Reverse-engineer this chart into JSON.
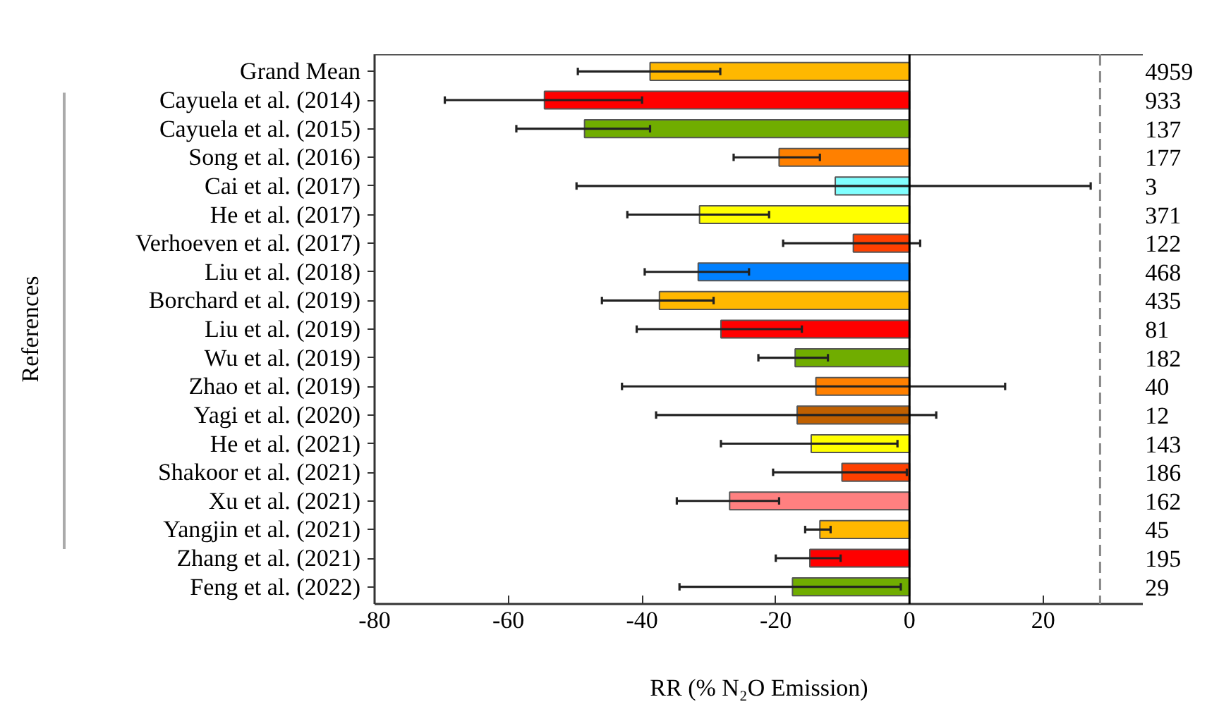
{
  "chart_data": {
    "type": "bar",
    "orientation": "horizontal",
    "xlabel": "RR (% N₂O Emission)",
    "ylabel": "References",
    "categories": [
      "Grand Mean",
      "Cayuela et al. (2014)",
      "Cayuela et al. (2015)",
      "Song et al. (2016)",
      "Cai et al. (2017)",
      "He et al. (2017)",
      "Verhoeven et al. (2017)",
      "Liu et al. (2018)",
      "Borchard et al. (2019)",
      "Liu et al. (2019)",
      "Wu et al. (2019)",
      "Zhao et al. (2019)",
      "Yagi et al. (2020)",
      "He et al. (2021)",
      "Shakoor et al. (2021)",
      "Xu et al. (2021)",
      "Yangjin et al. (2021)",
      "Zhang et al. (2021)",
      "Feng et al. (2022)"
    ],
    "values": [
      -38.8,
      -54.6,
      -48.6,
      -19.5,
      -11.1,
      -31.4,
      -8.4,
      -31.6,
      -37.4,
      -28.2,
      -17.1,
      -14.0,
      -16.8,
      -14.7,
      -10.1,
      -26.9,
      -13.4,
      -14.9,
      -17.5
    ],
    "errors": [
      [
        -49.6,
        -28.3
      ],
      [
        -69.5,
        -40.0
      ],
      [
        -58.8,
        -38.8
      ],
      [
        -26.3,
        -13.4
      ],
      [
        -49.8,
        27.1
      ],
      [
        -42.2,
        -21.0
      ],
      [
        -18.9,
        1.6
      ],
      [
        -39.6,
        -24.0
      ],
      [
        -46.0,
        -29.3
      ],
      [
        -40.8,
        -16.1
      ],
      [
        -22.6,
        -12.2
      ],
      [
        -43.0,
        14.3
      ],
      [
        -37.9,
        4.0
      ],
      [
        -28.2,
        -1.8
      ],
      [
        -20.4,
        -0.4
      ],
      [
        -34.8,
        -19.5
      ],
      [
        -15.6,
        -11.8
      ],
      [
        -20.0,
        -10.3
      ],
      [
        -34.4,
        -1.3
      ]
    ],
    "colors": [
      "#ffb800",
      "#ff0000",
      "#70ad00",
      "#ff8000",
      "#80ffff",
      "#ffff00",
      "#ff4000",
      "#0080ff",
      "#ffb800",
      "#ff0000",
      "#70ad00",
      "#ff8000",
      "#c06000",
      "#ffff00",
      "#ff4000",
      "#ff8080",
      "#ffb800",
      "#ff0000",
      "#70ad00"
    ],
    "xlim": [
      -80,
      35
    ],
    "xticks": [
      -80,
      -60,
      -40,
      -20,
      0,
      20
    ],
    "ref_lines": [
      {
        "axis": "x",
        "value": 0,
        "color": "#000000",
        "line_style": "solid"
      },
      {
        "axis": "x",
        "value": 28.5,
        "color": "#888888",
        "line_style": "dashed"
      }
    ],
    "annotations": [
      "4959",
      "933",
      "137",
      "177",
      "3",
      "371",
      "122",
      "468",
      "435",
      "81",
      "182",
      "40",
      "12",
      "143",
      "186",
      "162",
      "45",
      "195",
      "29"
    ],
    "grid": false
  }
}
